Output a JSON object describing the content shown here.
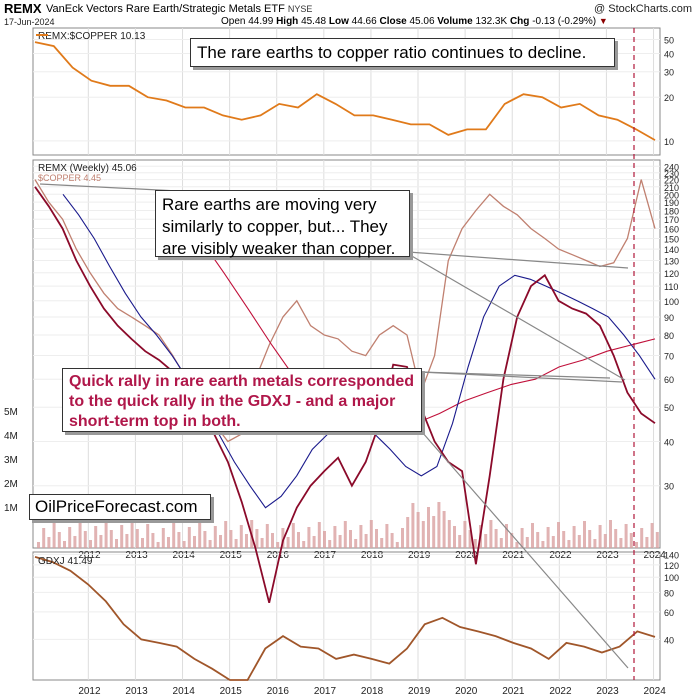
{
  "header": {
    "symbol": "REMX",
    "name": "VanEck Vectors Rare Earth/Strategic Metals ETF",
    "exchange": "NYSE",
    "credit": "@ StockCharts.com",
    "date": "17-Jun-2024",
    "open_label": "Open",
    "open": "44.99",
    "high_label": "High",
    "high": "45.48",
    "low_label": "Low",
    "low": "44.66",
    "close_label": "Close",
    "close": "45.06",
    "volume_label": "Volume",
    "volume": "132.3K",
    "chg_label": "Chg",
    "chg": "-0.13 (-0.29%)"
  },
  "annotations": {
    "ratio_note": "The rare earths to copper ratio continues to decline.",
    "copper_note": "Rare earths are moving very similarly to copper, but... They are visibly weaker than copper.",
    "gdxj_note": "Quick rally in rare earth metals corresponded to the quick rally in the GDXJ - and a major short-term top in both.",
    "source": "OilPriceForecast.com"
  },
  "colors": {
    "ratio": "#e07a1a",
    "remx": "#8b0a2a",
    "copper": "#c08070",
    "ma_blue": "#1a1a8c",
    "ma_red": "#c0103a",
    "gdxj": "#a0562a",
    "volume": "#d9a0a0",
    "marker": "#b0173a"
  },
  "chart_data": [
    {
      "type": "line",
      "title": "REMX:$COPPER 10.13",
      "series": [
        {
          "name": "REMX:$COPPER",
          "values": [
            48,
            45,
            32,
            26,
            24,
            24,
            20,
            19,
            17,
            17,
            15,
            14,
            15,
            18,
            17,
            21,
            18,
            15,
            15,
            14,
            13,
            13,
            11,
            12,
            12,
            18,
            21,
            20,
            17,
            18,
            15,
            14,
            12,
            10.13
          ]
        }
      ],
      "x": [
        2011.5,
        2011.8,
        2012.0,
        2012.4,
        2012.8,
        2013.2,
        2013.6,
        2014.0,
        2014.4,
        2014.8,
        2015.2,
        2015.6,
        2016.0,
        2016.5,
        2016.9,
        2017.4,
        2017.9,
        2018.4,
        2018.9,
        2019.3,
        2019.7,
        2020.0,
        2020.3,
        2020.7,
        2021.0,
        2021.4,
        2021.8,
        2022.1,
        2022.5,
        2022.9,
        2023.3,
        2023.7,
        2024.0,
        2024.47
      ],
      "ylim": [
        8,
        60
      ],
      "yticks": [
        "50",
        "40",
        "30",
        "20",
        "10"
      ]
    },
    {
      "type": "line",
      "title": "REMX (Weekly) 45.06",
      "series": [
        {
          "name": "REMX (Weekly)",
          "values": [
            210,
            185,
            160,
            130,
            110,
            95,
            85,
            78,
            72,
            68,
            63,
            58,
            50,
            42,
            35,
            27,
            20,
            14,
            21,
            26,
            30,
            33,
            36,
            30,
            35,
            45,
            66,
            65,
            50,
            40,
            35,
            33,
            18,
            32,
            60,
            90,
            110,
            118,
            100,
            95,
            92,
            85,
            70,
            55,
            48,
            45.06
          ]
        },
        {
          "name": "$COPPER 4.45",
          "values": [
            220,
            190,
            170,
            140,
            120,
            105,
            95,
            90,
            85,
            80,
            70,
            60,
            52,
            45,
            40,
            42,
            60,
            75,
            90,
            100,
            85,
            80,
            78,
            72,
            70,
            80,
            85,
            80,
            55,
            70,
            130,
            160,
            180,
            200,
            185,
            175,
            160,
            150,
            140,
            135,
            130,
            125,
            128,
            150,
            220,
            160
          ]
        },
        {
          "name": "MA (blue)",
          "values": [
            200,
            175,
            150,
            125,
            105,
            90,
            80,
            70,
            60,
            50,
            42,
            35,
            30,
            26,
            28,
            32,
            38,
            42,
            45,
            45,
            42,
            38,
            34,
            32,
            34,
            45,
            65,
            90,
            110,
            118,
            115,
            110,
            105,
            100,
            95,
            90,
            80,
            70,
            60
          ]
        },
        {
          "name": "MA (red)",
          "values": [
            150,
            120,
            95,
            75,
            60,
            50,
            45,
            42,
            43,
            45,
            48,
            52,
            55,
            58,
            60,
            65,
            68,
            72,
            75,
            78
          ]
        }
      ],
      "ylim": [
        20,
        250
      ],
      "yticks": [
        "250",
        "240",
        "230",
        "220",
        "210",
        "200",
        "190",
        "180",
        "170",
        "160",
        "150",
        "140",
        "130",
        "120",
        "110",
        "100",
        "90",
        "80",
        "70",
        "60",
        "50",
        "40",
        "30"
      ],
      "volume_labels": [
        "5M",
        "4M",
        "3M",
        "2M",
        "1M"
      ]
    },
    {
      "type": "line",
      "title": "GDXJ 41.49",
      "series": [
        {
          "name": "GDXJ",
          "values": [
            135,
            125,
            110,
            90,
            70,
            50,
            40,
            38,
            36,
            30,
            26,
            22,
            22,
            35,
            42,
            36,
            35,
            30,
            32,
            30,
            28,
            35,
            50,
            55,
            48,
            45,
            42,
            38,
            35,
            30,
            38,
            36,
            33,
            36,
            45,
            41.49
          ]
        }
      ],
      "ylim": [
        22,
        145
      ],
      "yticks": [
        "140",
        "120",
        "100",
        "80",
        "60",
        "40"
      ]
    }
  ],
  "x_axis": {
    "labels": [
      "2012",
      "2013",
      "2014",
      "2015",
      "2016",
      "2017",
      "2018",
      "2019",
      "2020",
      "2021",
      "2022",
      "2023",
      "2024"
    ]
  }
}
